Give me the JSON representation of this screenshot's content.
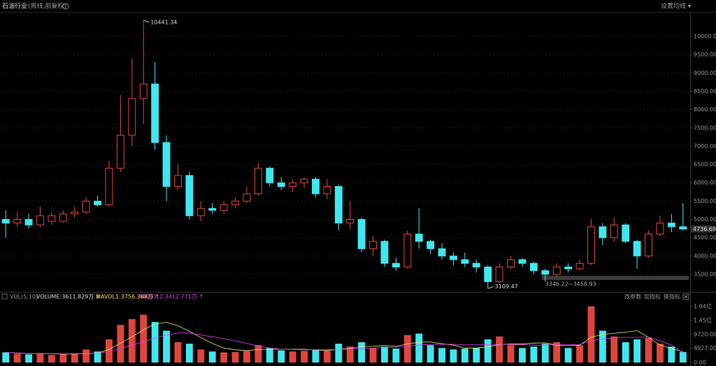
{
  "header": {
    "title": "石油行业",
    "subtitle": "(周线,前复权)",
    "ma_setting": "设置均线 ▾"
  },
  "chart_data": {
    "type": "candlestick",
    "up_color": "#e0453c",
    "down_color": "#3fe7f0",
    "ylim": [
      3060,
      10650
    ],
    "yticks": [
      {
        "value": 3500,
        "label": "3500.00"
      },
      {
        "value": 4000,
        "label": "4000.00"
      },
      {
        "value": 4500,
        "label": "4500.00"
      },
      {
        "value": 5000,
        "label": "5000.00"
      },
      {
        "value": 5500,
        "label": "5500.00"
      },
      {
        "value": 6000,
        "label": "6000.00"
      },
      {
        "value": 6500,
        "label": "6500.00"
      },
      {
        "value": 7000,
        "label": "7000.00"
      },
      {
        "value": 7500,
        "label": "7500.00"
      },
      {
        "value": 8000,
        "label": "8000.00"
      },
      {
        "value": 8500,
        "label": "8500.00"
      },
      {
        "value": 9000,
        "label": "9000.00"
      },
      {
        "value": 9500,
        "label": "9500.00"
      },
      {
        "value": 10000,
        "label": "10000.00"
      }
    ],
    "grid": true,
    "max_label": "10441.34",
    "max_index": 12,
    "min_label": "3109.47",
    "min_index": 42,
    "last_label": "4736.69",
    "range": {
      "low": 3346.22,
      "high": 3458.93,
      "label": "3346.22~3458.93"
    },
    "ohlc": [
      [
        5000,
        5250,
        4500,
        4900
      ],
      [
        4900,
        5200,
        4800,
        5000
      ],
      [
        5000,
        5150,
        4750,
        4850
      ],
      [
        4850,
        5350,
        4800,
        5100
      ],
      [
        4950,
        5200,
        4850,
        5100
      ],
      [
        4950,
        5250,
        4900,
        5150
      ],
      [
        5150,
        5350,
        5050,
        5200
      ],
      [
        5200,
        5600,
        5150,
        5500
      ],
      [
        5500,
        5650,
        5350,
        5400
      ],
      [
        5400,
        6600,
        5350,
        6400
      ],
      [
        6400,
        8400,
        6300,
        7300
      ],
      [
        7300,
        9400,
        7000,
        8300
      ],
      [
        8300,
        10441.34,
        7600,
        8700
      ],
      [
        8700,
        9300,
        6900,
        7100
      ],
      [
        7100,
        7300,
        5500,
        5900
      ],
      [
        5900,
        6500,
        5800,
        6200
      ],
      [
        6200,
        6300,
        5000,
        5100
      ],
      [
        5100,
        5500,
        4950,
        5300
      ],
      [
        5300,
        5450,
        5150,
        5250
      ],
      [
        5250,
        5500,
        5150,
        5400
      ],
      [
        5400,
        5600,
        5300,
        5500
      ],
      [
        5500,
        5900,
        5450,
        5700
      ],
      [
        5700,
        6550,
        5650,
        6400
      ],
      [
        6400,
        6450,
        5900,
        6000
      ],
      [
        6000,
        6150,
        5800,
        5900
      ],
      [
        5900,
        6100,
        5750,
        6000
      ],
      [
        6000,
        6150,
        5850,
        6100
      ],
      [
        6100,
        6150,
        5600,
        5700
      ],
      [
        5700,
        6100,
        5550,
        5900
      ],
      [
        5900,
        5950,
        4700,
        4900
      ],
      [
        4900,
        5500,
        4750,
        5000
      ],
      [
        5000,
        5050,
        4100,
        4200
      ],
      [
        4200,
        4550,
        4000,
        4400
      ],
      [
        4400,
        4450,
        3700,
        3800
      ],
      [
        3800,
        3950,
        3600,
        3700
      ],
      [
        3700,
        4700,
        3650,
        4600
      ],
      [
        4600,
        5300,
        4200,
        4400
      ],
      [
        4400,
        4450,
        4050,
        4200
      ],
      [
        4200,
        4350,
        3900,
        4000
      ],
      [
        4000,
        4100,
        3750,
        3900
      ],
      [
        3900,
        4100,
        3700,
        3800
      ],
      [
        3800,
        3900,
        3550,
        3700
      ],
      [
        3700,
        3750,
        3109.47,
        3300
      ],
      [
        3300,
        3800,
        3250,
        3700
      ],
      [
        3700,
        4000,
        3650,
        3900
      ],
      [
        3900,
        3950,
        3700,
        3800
      ],
      [
        3800,
        3850,
        3500,
        3600
      ],
      [
        3600,
        3650,
        3300,
        3500
      ],
      [
        3500,
        3800,
        3450,
        3700
      ],
      [
        3700,
        3800,
        3550,
        3650
      ],
      [
        3650,
        3900,
        3600,
        3800
      ],
      [
        3800,
        5000,
        3750,
        4800
      ],
      [
        4800,
        4900,
        4300,
        4500
      ],
      [
        4500,
        5050,
        4400,
        4850
      ],
      [
        4850,
        4900,
        4350,
        4400
      ],
      [
        4400,
        4450,
        3650,
        4000
      ],
      [
        4000,
        4700,
        3950,
        4600
      ],
      [
        4600,
        5100,
        4550,
        4900
      ],
      [
        4900,
        5150,
        4650,
        4800
      ],
      [
        4800,
        5450,
        4700,
        4736.69
      ]
    ],
    "volume_pane": {
      "name": "VOL(5,10)",
      "volume_label": "VOLUME:3611.829万 ↓",
      "mavol1_label": "MAVOL1:3756.368万 ↑",
      "mavol2_label": "MAVOL2:3412.771万 ↑",
      "buttons": [
        "改参数",
        "加指标",
        "换指标"
      ],
      "ylim": [
        0,
        20800
      ],
      "yticks": [
        {
          "value": 0,
          "label": "0.00"
        },
        {
          "value": 4927,
          "label": "4927.00万"
        },
        {
          "value": 9720,
          "label": "9720.00万"
        },
        {
          "value": 14500,
          "label": "1.45亿"
        },
        {
          "value": 19400,
          "label": "1.94亿"
        }
      ],
      "volume": [
        3500,
        3000,
        2800,
        3200,
        2600,
        3000,
        3200,
        4500,
        3800,
        8000,
        13000,
        15000,
        16500,
        14000,
        11000,
        7000,
        6500,
        4500,
        3800,
        3500,
        3600,
        4000,
        6000,
        5000,
        4200,
        3800,
        4000,
        4500,
        4000,
        6500,
        5500,
        7000,
        5000,
        5500,
        4800,
        9500,
        10000,
        6000,
        5000,
        4500,
        4800,
        5000,
        8000,
        9000,
        6000,
        5000,
        5500,
        6500,
        7000,
        5000,
        6000,
        19400,
        11000,
        9000,
        7000,
        8000,
        8500,
        6500,
        5500,
        3611.829
      ],
      "series": [
        {
          "name": "MAVOL1",
          "color": "#f2e35c",
          "values": [
            3500,
            3250,
            3100,
            3100,
            3000,
            2900,
            2950,
            3050,
            3250,
            4500,
            6700,
            8900,
            11300,
            13300,
            13900,
            12700,
            10800,
            8600,
            6600,
            5000,
            4400,
            4100,
            4500,
            4600,
            4600,
            4600,
            4600,
            4300,
            4100,
            4600,
            4900,
            5500,
            5600,
            5900,
            5600,
            6400,
            7000,
            7100,
            6500,
            6000,
            5000,
            5000,
            5400,
            6200,
            6400,
            6400,
            6700,
            6800,
            6000,
            5800,
            6000,
            8700,
            9700,
            10100,
            10500,
            11000,
            8700,
            6000,
            4800,
            3756.368
          ]
        },
        {
          "name": "MAVOL2",
          "color": "#e040fb",
          "values": [
            3500,
            3300,
            3150,
            3100,
            3050,
            3000,
            3000,
            3050,
            3150,
            3800,
            4900,
            6000,
            7200,
            8400,
            9500,
            10200,
            10200,
            9500,
            8900,
            8200,
            7500,
            6600,
            5700,
            5000,
            4600,
            4500,
            4400,
            4400,
            4400,
            4500,
            4700,
            4800,
            5000,
            5200,
            5300,
            5600,
            6000,
            6300,
            6300,
            6300,
            6100,
            6100,
            6200,
            6300,
            6200,
            6200,
            6000,
            6000,
            6100,
            6100,
            6200,
            7500,
            8100,
            8500,
            8700,
            8700,
            8800,
            7500,
            6000,
            3412.771
          ]
        }
      ]
    }
  }
}
